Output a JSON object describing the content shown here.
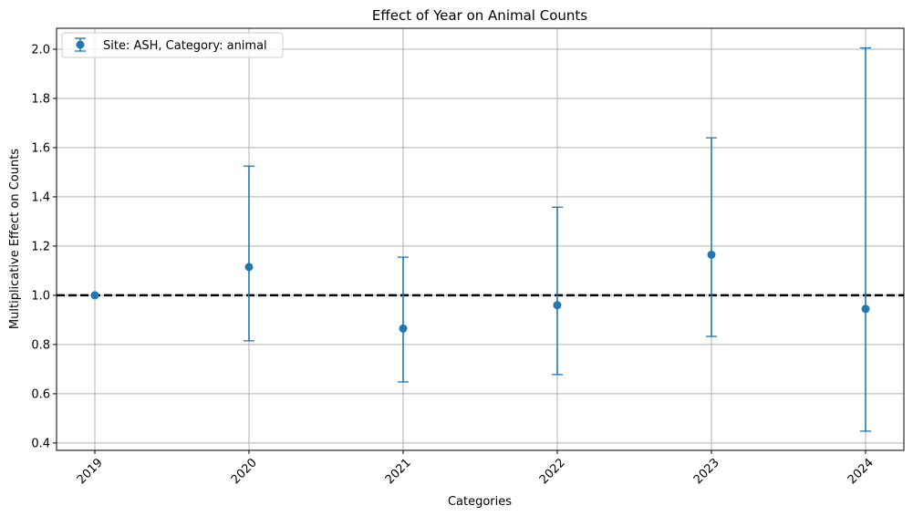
{
  "chart_data": {
    "type": "scatter",
    "title": "Effect of Year on Animal Counts",
    "xlabel": "Categories",
    "ylabel": "Multiplicative Effect on Counts",
    "categories": [
      "2019",
      "2020",
      "2021",
      "2022",
      "2023",
      "2024"
    ],
    "ylim": [
      0.37,
      2.085
    ],
    "yticks": [
      "0.4",
      "0.6",
      "0.8",
      "1.0",
      "1.2",
      "1.4",
      "1.6",
      "1.8",
      "2.0"
    ],
    "grid": true,
    "legend_position": "upper-left",
    "reference_line": 1.0,
    "series": [
      {
        "name": "Site: ASH, Category: animal",
        "values": [
          1.0,
          1.115,
          0.865,
          0.96,
          1.165,
          0.945
        ],
        "lower": [
          1.0,
          0.815,
          0.648,
          0.678,
          0.833,
          0.448
        ],
        "upper": [
          1.0,
          1.525,
          1.155,
          1.358,
          1.64,
          2.005
        ]
      }
    ],
    "colors": {
      "series": "#1f77b4",
      "reference": "#000000",
      "grid": "#b0b0b0"
    }
  }
}
